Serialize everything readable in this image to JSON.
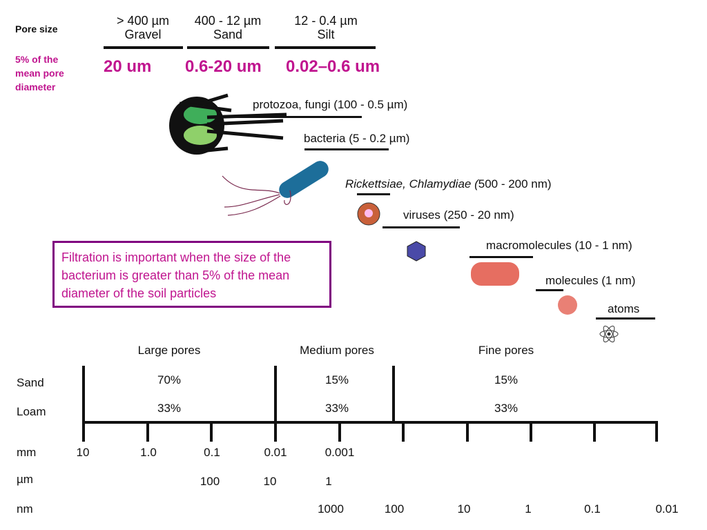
{
  "pore_size_label": "Pore size",
  "five_percent_label": "5% of the mean pore diameter",
  "soil_classes": [
    {
      "range": "> 400 µm",
      "name": "Gravel",
      "five_percent": "20 um"
    },
    {
      "range": "400 - 12 µm",
      "name": "Sand",
      "five_percent": "0.6-20 um"
    },
    {
      "range": "12 - 0.4 µm",
      "name": "Silt",
      "five_percent": "0.02–0.6 um"
    }
  ],
  "organisms": [
    {
      "label": "protozoa, fungi (100 - 0.5 µm)"
    },
    {
      "label": "bacteria (5 - 0.2 µm)"
    },
    {
      "label_italic": "Rickettsiae, Chlamydiae (",
      "label_rest": "500 - 200 nm)"
    },
    {
      "label": "viruses (250 - 20 nm)"
    },
    {
      "label": "macromolecules (10 - 1 nm)"
    },
    {
      "label": "molecules (1 nm)"
    },
    {
      "label": "atoms"
    }
  ],
  "callout": "Filtration is important when the size of the bacterium is greater than 5% of the mean diameter of the soil particles",
  "pore_table": {
    "columns": [
      "Large pores",
      "Medium pores",
      "Fine pores"
    ],
    "rows": [
      {
        "label": "Sand",
        "values": [
          "70%",
          "15%",
          "15%"
        ]
      },
      {
        "label": "Loam",
        "values": [
          "33%",
          "33%",
          "33%"
        ]
      }
    ]
  },
  "scale": {
    "mm": {
      "unit": "mm",
      "ticks": [
        "10",
        "1.0",
        "0.1",
        "0.01",
        "0.001"
      ]
    },
    "um": {
      "unit": "µm",
      "ticks": [
        "100",
        "10",
        "1"
      ]
    },
    "nm": {
      "unit": "nm",
      "ticks": [
        "1000",
        "100",
        "10",
        "1",
        "0.1",
        "0.01"
      ]
    }
  },
  "colors": {
    "accent": "#c0158f",
    "callout_border": "#800080"
  }
}
